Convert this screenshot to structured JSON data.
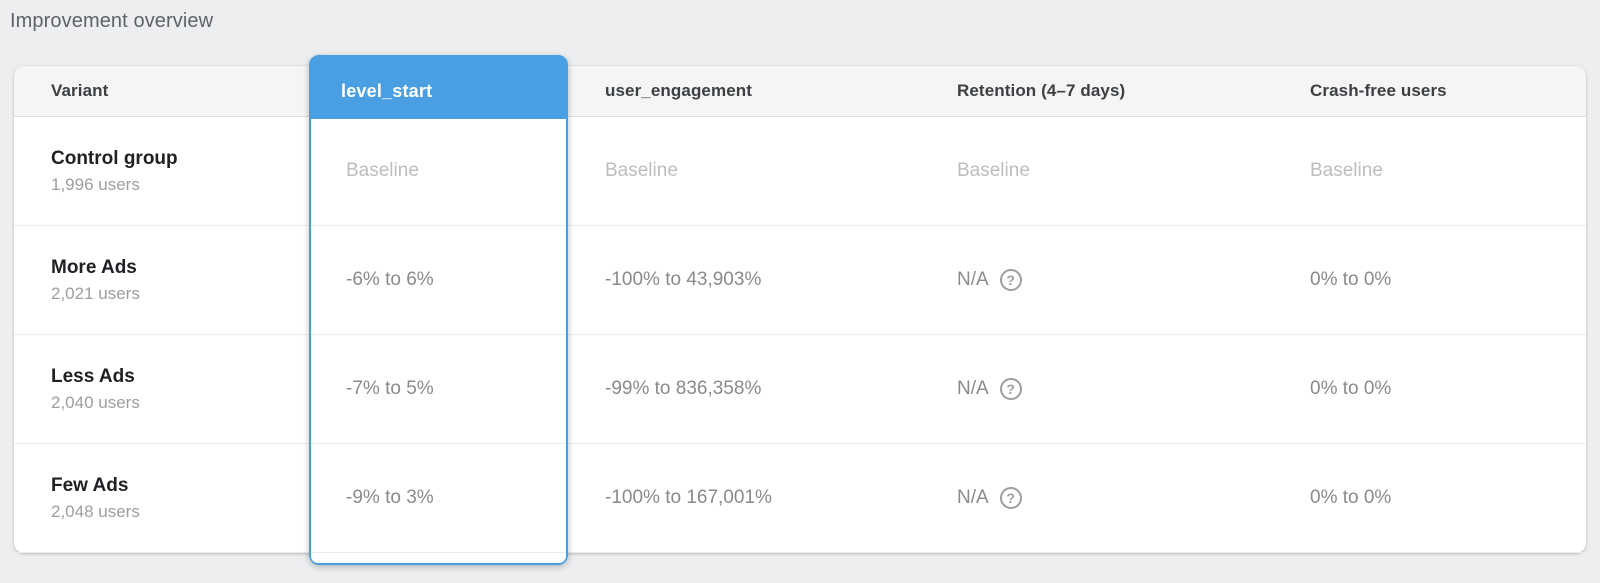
{
  "page": {
    "title": "Improvement overview"
  },
  "colors": {
    "accent_blue": "#4a9ee2",
    "page_background": "#eceef0",
    "header_row_background": "#f5f5f5",
    "value_text": "#8a8a8a",
    "baseline_text": "#bdbdbd",
    "variant_name_text": "#202124"
  },
  "icons": {
    "help_glyph": "?"
  },
  "table": {
    "columns": [
      {
        "id": "variant",
        "label": "Variant"
      },
      {
        "id": "level_start",
        "label": "level_start",
        "selected": true
      },
      {
        "id": "user_engagement",
        "label": "user_engagement"
      },
      {
        "id": "retention",
        "label": "Retention (4–7 days)"
      },
      {
        "id": "crash_free",
        "label": "Crash-free users"
      }
    ],
    "rows": [
      {
        "variant": "Control group",
        "users": "1,996 users",
        "level_start": "Baseline",
        "user_engagement": "Baseline",
        "retention": "Baseline",
        "crash_free": "Baseline"
      },
      {
        "variant": "More Ads",
        "users": "2,021 users",
        "level_start": "-6% to 6%",
        "user_engagement": "-100% to 43,903%",
        "retention": "N/A",
        "crash_free": "0% to 0%"
      },
      {
        "variant": "Less Ads",
        "users": "2,040 users",
        "level_start": "-7% to 5%",
        "user_engagement": "-99% to 836,358%",
        "retention": "N/A",
        "crash_free": "0% to 0%"
      },
      {
        "variant": "Few Ads",
        "users": "2,048 users",
        "level_start": "-9% to 3%",
        "user_engagement": "-100% to 167,001%",
        "retention": "N/A",
        "crash_free": "0% to 0%"
      }
    ]
  }
}
